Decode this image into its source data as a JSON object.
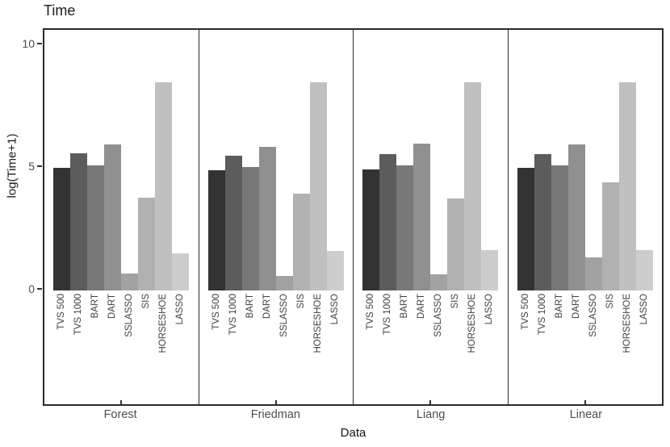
{
  "title": "Time",
  "axes": {
    "y_label": "log(Time+1)",
    "x_label": "Data",
    "y_tick_labels": [
      "0",
      "5",
      "10"
    ]
  },
  "chart_data": {
    "type": "bar",
    "title": "Time",
    "xlabel": "Data",
    "ylabel": "log(Time+1)",
    "facets": [
      "Forest",
      "Friedman",
      "Liang",
      "Linear"
    ],
    "categories": [
      "TVS 500",
      "TVS 1000",
      "BART",
      "DART",
      "SSLASSO",
      "SIS",
      "HORSESHOE",
      "LASSO"
    ],
    "series": [
      {
        "name": "Forest",
        "values": [
          5.0,
          5.6,
          5.1,
          5.95,
          0.7,
          3.8,
          8.5,
          1.5
        ]
      },
      {
        "name": "Friedman",
        "values": [
          4.9,
          5.5,
          5.05,
          5.85,
          0.6,
          3.95,
          8.5,
          1.6
        ]
      },
      {
        "name": "Liang",
        "values": [
          4.95,
          5.55,
          5.1,
          6.0,
          0.65,
          3.75,
          8.5,
          1.65
        ]
      },
      {
        "name": "Linear",
        "values": [
          5.0,
          5.55,
          5.1,
          5.95,
          1.35,
          4.4,
          8.5,
          1.65
        ]
      }
    ],
    "y_ticks": [
      0,
      5,
      10
    ],
    "ylim": [
      0,
      10
    ],
    "grid": false,
    "legend": "none",
    "bar_colors": [
      "#333333",
      "#5C5C5C",
      "#787878",
      "#909090",
      "#A2A2A2",
      "#B1B1B1",
      "#C0C0C0",
      "#CDCDCD"
    ],
    "axis_color": "#2B2B2B",
    "tick_label_color": "#4D4D4D"
  }
}
